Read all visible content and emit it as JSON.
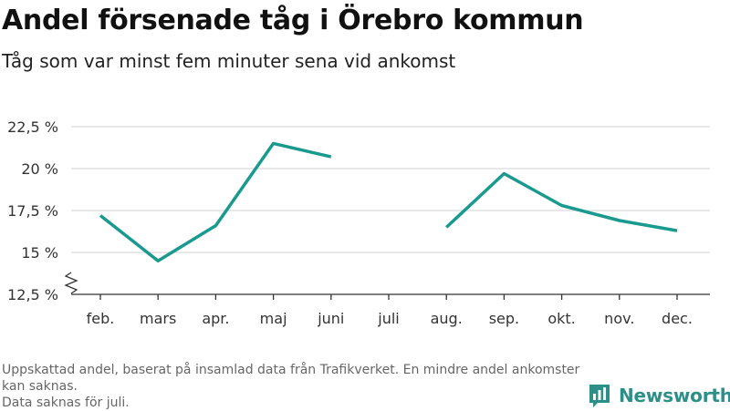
{
  "header": {
    "title": "Andel försenade tåg i Örebro kommun",
    "subtitle": "Tåg som var minst fem minuter sena vid ankomst"
  },
  "footer": {
    "note_line1": "Uppskattad andel, baserat på insamlad data från Trafikverket. En mindre andel ankomster kan saknas.",
    "note_line2": "Data saknas för juli.",
    "brand": "Newsworthy"
  },
  "chart_data": {
    "type": "line",
    "title": "Andel försenade tåg i Örebro kommun",
    "subtitle": "Tåg som var minst fem minuter sena vid ankomst",
    "categories": [
      "feb.",
      "mars",
      "apr.",
      "maj",
      "juni",
      "juli",
      "aug.",
      "sep.",
      "okt.",
      "nov.",
      "dec."
    ],
    "series": [
      {
        "values": [
          17.2,
          14.5,
          16.6,
          21.5,
          20.7,
          null,
          16.5,
          19.7,
          17.8,
          16.9,
          16.3
        ]
      }
    ],
    "ylim": [
      12.5,
      22.5
    ],
    "yticks": [
      12.5,
      15,
      17.5,
      20,
      22.5
    ],
    "ytick_labels": [
      "12,5 %",
      "15 %",
      "17,5 %",
      "20 %",
      "22,5 %"
    ],
    "y_axis_break": true,
    "grid": "horizontal",
    "legend": "none",
    "colors": {
      "line": "#1a9a8e",
      "grid": "#d9d9d9",
      "axis": "#333333"
    }
  }
}
